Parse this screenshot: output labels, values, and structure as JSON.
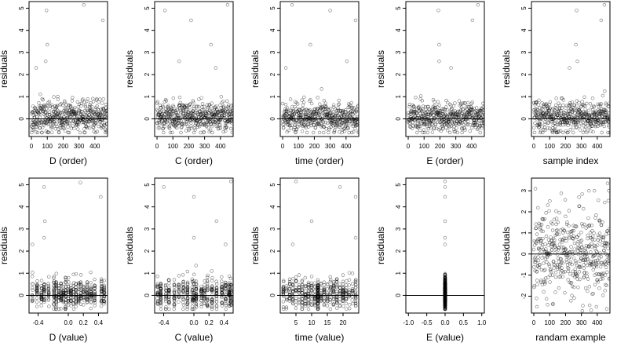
{
  "figure": {
    "background": "#ffffff"
  },
  "chart_data": [
    {
      "type": "scatter",
      "xlabel": "D (order)",
      "ylabel": "residuals",
      "xlim": [
        -15,
        480
      ],
      "ylim": [
        -0.8,
        5.3
      ],
      "xticks": [
        0,
        100,
        200,
        300,
        400
      ],
      "yticks": [
        0,
        1,
        2,
        3,
        4,
        5
      ],
      "hline": 0,
      "gen": {
        "mode": "index",
        "n": 480,
        "seed": 11
      },
      "points": [
        {
          "x": 95,
          "y": 4.9
        },
        {
          "x": 330,
          "y": 5.15
        },
        {
          "x": 450,
          "y": 4.45
        },
        {
          "x": 100,
          "y": 3.35
        },
        {
          "x": 90,
          "y": 2.6
        },
        {
          "x": 30,
          "y": 2.3
        }
      ]
    },
    {
      "type": "scatter",
      "xlabel": "C (order)",
      "ylabel": "residuals",
      "xlim": [
        -15,
        480
      ],
      "ylim": [
        -0.8,
        5.3
      ],
      "xticks": [
        0,
        100,
        200,
        300,
        400
      ],
      "yticks": [
        0,
        1,
        2,
        3,
        4,
        5
      ],
      "hline": 0,
      "gen": {
        "mode": "index",
        "n": 480,
        "seed": 23
      },
      "points": [
        {
          "x": 50,
          "y": 4.9
        },
        {
          "x": 445,
          "y": 5.15
        },
        {
          "x": 215,
          "y": 4.45
        },
        {
          "x": 340,
          "y": 3.35
        },
        {
          "x": 140,
          "y": 2.6
        },
        {
          "x": 370,
          "y": 2.3
        }
      ]
    },
    {
      "type": "scatter",
      "xlabel": "time (order)",
      "ylabel": "residuals",
      "xlim": [
        -15,
        480
      ],
      "ylim": [
        -0.8,
        5.3
      ],
      "xticks": [
        0,
        100,
        200,
        300,
        400
      ],
      "yticks": [
        0,
        1,
        2,
        3,
        4,
        5
      ],
      "hline": 0,
      "gen": {
        "mode": "index",
        "n": 480,
        "seed": 37
      },
      "points": [
        {
          "x": 60,
          "y": 5.15
        },
        {
          "x": 300,
          "y": 4.9
        },
        {
          "x": 460,
          "y": 4.45
        },
        {
          "x": 175,
          "y": 3.35
        },
        {
          "x": 405,
          "y": 2.6
        },
        {
          "x": 20,
          "y": 2.3
        }
      ]
    },
    {
      "type": "scatter",
      "xlabel": "E (order)",
      "ylabel": "residuals",
      "xlim": [
        -15,
        480
      ],
      "ylim": [
        -0.8,
        5.3
      ],
      "xticks": [
        0,
        100,
        200,
        300,
        400
      ],
      "yticks": [
        0,
        1,
        2,
        3,
        4,
        5
      ],
      "hline": 0,
      "gen": {
        "mode": "index",
        "n": 480,
        "seed": 41
      },
      "points": [
        {
          "x": 190,
          "y": 4.9
        },
        {
          "x": 440,
          "y": 5.15
        },
        {
          "x": 405,
          "y": 4.45
        },
        {
          "x": 195,
          "y": 3.35
        },
        {
          "x": 195,
          "y": 2.6
        },
        {
          "x": 270,
          "y": 2.3
        }
      ]
    },
    {
      "type": "scatter",
      "xlabel": "sample index",
      "ylabel": "residuals",
      "xlim": [
        -15,
        480
      ],
      "ylim": [
        -0.8,
        5.3
      ],
      "xticks": [
        0,
        100,
        200,
        300,
        400
      ],
      "yticks": [
        0,
        1,
        2,
        3,
        4,
        5
      ],
      "hline": 0,
      "gen": {
        "mode": "index",
        "n": 480,
        "seed": 53
      },
      "points": [
        {
          "x": 270,
          "y": 4.9
        },
        {
          "x": 445,
          "y": 5.15
        },
        {
          "x": 425,
          "y": 4.45
        },
        {
          "x": 265,
          "y": 3.35
        },
        {
          "x": 275,
          "y": 2.6
        },
        {
          "x": 225,
          "y": 2.3
        }
      ]
    },
    {
      "type": "scatter",
      "xlabel": "D (value)",
      "ylabel": "residuals",
      "xlim": [
        -0.52,
        0.52
      ],
      "ylim": [
        -0.8,
        5.3
      ],
      "xticks": [
        -0.4,
        0.0,
        0.2,
        0.4
      ],
      "xticklabels": [
        "-0.4",
        "0.0",
        "0.2",
        "0.4"
      ],
      "yticks": [
        0,
        1,
        2,
        3,
        4,
        5
      ],
      "hline": 0,
      "gen": {
        "mode": "values",
        "n": 480,
        "seed": 61,
        "values": [
          -0.475,
          -0.415,
          -0.355,
          -0.32,
          -0.26,
          -0.19,
          -0.16,
          -0.125,
          -0.095,
          -0.065,
          -0.035,
          0.0,
          0.035,
          0.07,
          0.1,
          0.14,
          0.165,
          0.2,
          0.25,
          0.3,
          0.35,
          0.44,
          0.475
        ],
        "jitter": 0.004
      },
      "points": [
        {
          "x": -0.32,
          "y": 4.9
        },
        {
          "x": 0.16,
          "y": 5.1
        },
        {
          "x": 0.43,
          "y": 4.45
        },
        {
          "x": -0.31,
          "y": 3.35
        },
        {
          "x": -0.32,
          "y": 2.6
        },
        {
          "x": -0.475,
          "y": 2.3
        }
      ]
    },
    {
      "type": "scatter",
      "xlabel": "C (value)",
      "ylabel": "residuals",
      "xlim": [
        -0.52,
        0.52
      ],
      "ylim": [
        -0.8,
        5.3
      ],
      "xticks": [
        -0.4,
        0.0,
        0.2,
        0.4
      ],
      "xticklabels": [
        "-0.4",
        "0.0",
        "0.2",
        "0.4"
      ],
      "yticks": [
        0,
        1,
        2,
        3,
        4,
        5
      ],
      "hline": 0,
      "gen": {
        "mode": "values",
        "n": 480,
        "seed": 67,
        "values": [
          -0.48,
          -0.44,
          -0.37,
          -0.33,
          -0.26,
          -0.2,
          -0.14,
          -0.085,
          -0.02,
          0.0,
          0.03,
          0.1,
          0.14,
          0.18,
          0.24,
          0.3,
          0.37,
          0.42,
          0.47,
          0.49
        ],
        "jitter": 0.004
      },
      "points": [
        {
          "x": -0.4,
          "y": 4.9
        },
        {
          "x": 0.49,
          "y": 5.15
        },
        {
          "x": 0.0,
          "y": 4.45
        },
        {
          "x": 0.3,
          "y": 3.35
        },
        {
          "x": 0.0,
          "y": 2.6
        },
        {
          "x": 0.42,
          "y": 2.3
        }
      ]
    },
    {
      "type": "scatter",
      "xlabel": "time (value)",
      "ylabel": "residuals",
      "xlim": [
        0,
        25
      ],
      "ylim": [
        -0.8,
        5.3
      ],
      "xticks": [
        5,
        10,
        15,
        20
      ],
      "yticks": [
        0,
        1,
        2,
        3,
        4,
        5
      ],
      "hline": 0,
      "gen": {
        "mode": "values",
        "n": 480,
        "seed": 71,
        "values": [
          1,
          2,
          3,
          4,
          5,
          6,
          7,
          8,
          9,
          10,
          11,
          12,
          13,
          14,
          15,
          16,
          17,
          18,
          19,
          20,
          21,
          22,
          23,
          24
        ],
        "jitter": 0.08,
        "dense_at": 12
      },
      "points": [
        {
          "x": 5,
          "y": 5.15
        },
        {
          "x": 19,
          "y": 4.9
        },
        {
          "x": 24,
          "y": 4.45
        },
        {
          "x": 10,
          "y": 3.35
        },
        {
          "x": 24,
          "y": 2.6
        },
        {
          "x": 4,
          "y": 2.3
        }
      ]
    },
    {
      "type": "scatter",
      "xlabel": "E (value)",
      "ylabel": "residuals",
      "xlim": [
        -1.07,
        1.07
      ],
      "ylim": [
        -0.8,
        5.3
      ],
      "xticks": [
        -1.0,
        -0.5,
        0.0,
        0.5,
        1.0
      ],
      "xticklabels": [
        "-1.0",
        "-0.5",
        "0.0",
        "0.5",
        "1.0"
      ],
      "yticks": [
        0,
        1,
        2,
        3,
        4,
        5
      ],
      "hline": 0,
      "gen": {
        "mode": "single",
        "n": 480,
        "seed": 79,
        "value": 0.0
      },
      "points": [
        {
          "x": 0,
          "y": 5.15
        },
        {
          "x": 0,
          "y": 4.9
        },
        {
          "x": 0,
          "y": 4.45
        },
        {
          "x": 0,
          "y": 3.35
        },
        {
          "x": 0,
          "y": 2.6
        },
        {
          "x": 0,
          "y": 2.3
        }
      ]
    },
    {
      "type": "scatter",
      "xlabel": "randam example",
      "ylabel": "residuals",
      "xlim": [
        -15,
        480
      ],
      "ylim": [
        -2.8,
        3.6
      ],
      "xticks": [
        0,
        100,
        200,
        300,
        400
      ],
      "yticks": [
        -2,
        -1,
        0,
        1,
        2,
        3
      ],
      "hline": 0,
      "gen": {
        "mode": "normal",
        "n": 480,
        "seed": 97,
        "sd": 1.05
      },
      "points": [
        {
          "x": 10,
          "y": 3.1
        },
        {
          "x": 465,
          "y": 3.35
        },
        {
          "x": 20,
          "y": -2.5
        },
        {
          "x": 460,
          "y": -2.6
        },
        {
          "x": 395,
          "y": -2.5
        },
        {
          "x": 285,
          "y": 2.7
        }
      ]
    }
  ]
}
